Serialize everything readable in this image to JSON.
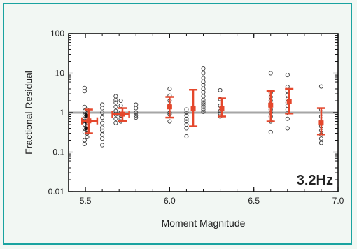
{
  "chart_data": {
    "type": "scatter",
    "xlabel": "Moment Magnitude",
    "ylabel": "Fractional Residual",
    "annotation": "3.2Hz",
    "x_scale": "linear",
    "y_scale": "log",
    "xlim": [
      5.4,
      7.0
    ],
    "ylim": [
      0.01,
      100
    ],
    "x_ticks": [
      5.5,
      6.0,
      6.5,
      7.0
    ],
    "x_tick_labels": [
      "5.5",
      "6.0",
      "6.5",
      "7.0"
    ],
    "y_ticks": [
      0.01,
      0.1,
      1,
      10,
      100
    ],
    "y_tick_labels": [
      "0.01",
      "0.1",
      "1",
      "10",
      "100"
    ],
    "reference_line": 1,
    "colors": {
      "reference_line": "#a6a6a6",
      "summary": "#e4472c",
      "points": "#3a3a3a",
      "selected_points": "#111111"
    },
    "points": [
      {
        "x": 5.495,
        "y": 4.2
      },
      {
        "x": 5.495,
        "y": 3.5
      },
      {
        "x": 5.495,
        "y": 1.4
      },
      {
        "x": 5.495,
        "y": 1.1
      },
      {
        "x": 5.495,
        "y": 0.85
      },
      {
        "x": 5.495,
        "y": 0.62
      },
      {
        "x": 5.495,
        "y": 0.5
      },
      {
        "x": 5.495,
        "y": 0.4
      },
      {
        "x": 5.495,
        "y": 0.32
      },
      {
        "x": 5.495,
        "y": 0.2
      },
      {
        "x": 5.495,
        "y": 0.16
      },
      {
        "x": 5.51,
        "y": 1.2
      },
      {
        "x": 5.51,
        "y": 0.95
      },
      {
        "x": 5.51,
        "y": 0.7
      },
      {
        "x": 5.51,
        "y": 0.55
      },
      {
        "x": 5.51,
        "y": 0.45
      },
      {
        "x": 5.51,
        "y": 0.36
      },
      {
        "x": 5.51,
        "y": 0.3
      },
      {
        "x": 5.51,
        "y": 0.24
      },
      {
        "x": 5.6,
        "y": 1.6
      },
      {
        "x": 5.6,
        "y": 1.3
      },
      {
        "x": 5.6,
        "y": 1.0
      },
      {
        "x": 5.6,
        "y": 0.75
      },
      {
        "x": 5.6,
        "y": 0.55
      },
      {
        "x": 5.6,
        "y": 0.42
      },
      {
        "x": 5.6,
        "y": 0.35
      },
      {
        "x": 5.6,
        "y": 0.28
      },
      {
        "x": 5.6,
        "y": 0.22
      },
      {
        "x": 5.6,
        "y": 0.15
      },
      {
        "x": 5.68,
        "y": 2.6
      },
      {
        "x": 5.68,
        "y": 2.1
      },
      {
        "x": 5.68,
        "y": 1.8
      },
      {
        "x": 5.68,
        "y": 1.4
      },
      {
        "x": 5.68,
        "y": 1.1
      },
      {
        "x": 5.68,
        "y": 0.9
      },
      {
        "x": 5.68,
        "y": 0.7
      },
      {
        "x": 5.68,
        "y": 0.55
      },
      {
        "x": 5.71,
        "y": 2.0
      },
      {
        "x": 5.71,
        "y": 1.5
      },
      {
        "x": 5.71,
        "y": 1.0
      },
      {
        "x": 5.71,
        "y": 0.85
      },
      {
        "x": 5.71,
        "y": 0.7
      },
      {
        "x": 5.71,
        "y": 0.6
      },
      {
        "x": 5.8,
        "y": 1.6
      },
      {
        "x": 5.8,
        "y": 1.3
      },
      {
        "x": 5.8,
        "y": 1.0
      },
      {
        "x": 5.8,
        "y": 0.85
      },
      {
        "x": 5.8,
        "y": 0.75
      },
      {
        "x": 6.0,
        "y": 4.0
      },
      {
        "x": 6.0,
        "y": 2.7
      },
      {
        "x": 6.0,
        "y": 2.0
      },
      {
        "x": 6.0,
        "y": 1.5
      },
      {
        "x": 6.0,
        "y": 1.0
      },
      {
        "x": 6.0,
        "y": 0.9
      },
      {
        "x": 6.0,
        "y": 0.6
      },
      {
        "x": 6.1,
        "y": 1.2
      },
      {
        "x": 6.1,
        "y": 1.0
      },
      {
        "x": 6.1,
        "y": 0.85
      },
      {
        "x": 6.1,
        "y": 0.7
      },
      {
        "x": 6.1,
        "y": 0.6
      },
      {
        "x": 6.1,
        "y": 0.5
      },
      {
        "x": 6.1,
        "y": 0.4
      },
      {
        "x": 6.1,
        "y": 0.25
      },
      {
        "x": 6.2,
        "y": 13
      },
      {
        "x": 6.2,
        "y": 10
      },
      {
        "x": 6.2,
        "y": 7.5
      },
      {
        "x": 6.2,
        "y": 6
      },
      {
        "x": 6.2,
        "y": 5
      },
      {
        "x": 6.2,
        "y": 4
      },
      {
        "x": 6.2,
        "y": 3.3
      },
      {
        "x": 6.2,
        "y": 2.6
      },
      {
        "x": 6.2,
        "y": 2.1
      },
      {
        "x": 6.2,
        "y": 1.8
      },
      {
        "x": 6.2,
        "y": 1.6
      },
      {
        "x": 6.2,
        "y": 1.4
      },
      {
        "x": 6.2,
        "y": 1.2
      },
      {
        "x": 6.2,
        "y": 1.05
      },
      {
        "x": 6.3,
        "y": 3.7
      },
      {
        "x": 6.3,
        "y": 2.2
      },
      {
        "x": 6.3,
        "y": 1.5
      },
      {
        "x": 6.3,
        "y": 1.1
      },
      {
        "x": 6.3,
        "y": 0.95
      },
      {
        "x": 6.3,
        "y": 0.8
      },
      {
        "x": 6.6,
        "y": 10
      },
      {
        "x": 6.6,
        "y": 3.2
      },
      {
        "x": 6.6,
        "y": 2.5
      },
      {
        "x": 6.6,
        "y": 2.0
      },
      {
        "x": 6.6,
        "y": 1.5
      },
      {
        "x": 6.6,
        "y": 1.2
      },
      {
        "x": 6.6,
        "y": 1.0
      },
      {
        "x": 6.6,
        "y": 0.8
      },
      {
        "x": 6.6,
        "y": 0.6
      },
      {
        "x": 6.6,
        "y": 0.32
      },
      {
        "x": 6.7,
        "y": 9
      },
      {
        "x": 6.7,
        "y": 4.5
      },
      {
        "x": 6.7,
        "y": 3.5
      },
      {
        "x": 6.7,
        "y": 2.8
      },
      {
        "x": 6.7,
        "y": 2.2
      },
      {
        "x": 6.7,
        "y": 1.8
      },
      {
        "x": 6.7,
        "y": 1.5
      },
      {
        "x": 6.7,
        "y": 1.2
      },
      {
        "x": 6.7,
        "y": 1.0
      },
      {
        "x": 6.7,
        "y": 0.7
      },
      {
        "x": 6.7,
        "y": 0.4
      },
      {
        "x": 6.9,
        "y": 4.6
      },
      {
        "x": 6.9,
        "y": 1.2
      },
      {
        "x": 6.9,
        "y": 0.8
      },
      {
        "x": 6.9,
        "y": 0.6
      },
      {
        "x": 6.9,
        "y": 0.45
      },
      {
        "x": 6.9,
        "y": 0.35
      },
      {
        "x": 6.9,
        "y": 0.28
      },
      {
        "x": 6.9,
        "y": 0.22
      },
      {
        "x": 6.9,
        "y": 0.17
      }
    ],
    "selected_points": [
      {
        "x": 5.505,
        "y": 0.85
      },
      {
        "x": 5.505,
        "y": 0.6
      },
      {
        "x": 5.505,
        "y": 0.4
      }
    ],
    "summary": [
      {
        "x": 5.52,
        "y": 0.62,
        "y_low": 0.3,
        "y_high": 1.2,
        "x_low": 5.48,
        "x_high": 5.57
      },
      {
        "x": 5.72,
        "y": 0.92,
        "y_low": 0.62,
        "y_high": 1.3,
        "x_low": 5.66,
        "x_high": 5.76
      },
      {
        "x": 6.0,
        "y": 1.4,
        "y_low": 0.75,
        "y_high": 2.5
      },
      {
        "x": 6.14,
        "y": 1.25,
        "y_low": 0.45,
        "y_high": 3.8
      },
      {
        "x": 6.31,
        "y": 1.3,
        "y_low": 0.8,
        "y_high": 2.3
      },
      {
        "x": 6.6,
        "y": 1.55,
        "y_low": 0.6,
        "y_high": 3.5
      },
      {
        "x": 6.71,
        "y": 1.95,
        "y_low": 0.95,
        "y_high": 4.0
      },
      {
        "x": 6.9,
        "y": 0.55,
        "y_low": 0.28,
        "y_high": 1.3
      }
    ]
  }
}
